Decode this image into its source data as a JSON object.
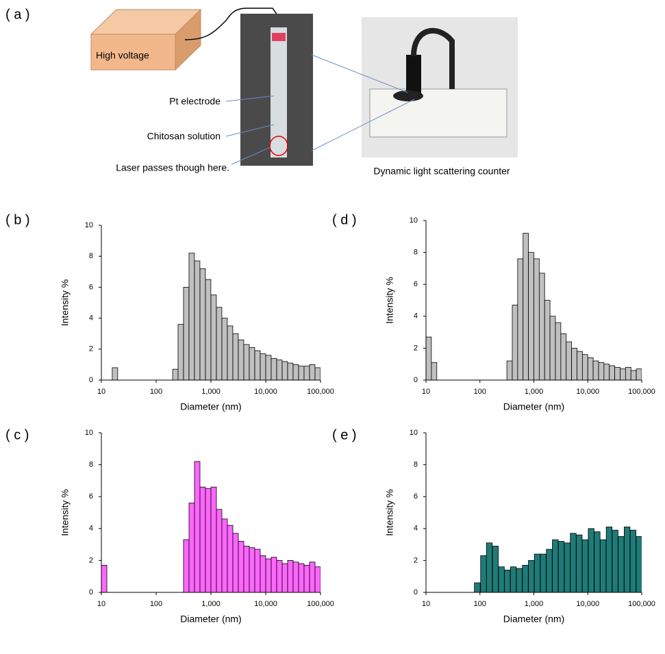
{
  "panel_a": {
    "label": "( a )",
    "power_supply": "High voltage",
    "annotations": [
      "Pt electrode",
      "Chitosan solution",
      "Laser passes though here."
    ],
    "instrument": "Dynamic light scattering counter"
  },
  "chart_data": [
    {
      "type": "bar",
      "label": "( b )",
      "x_label": "Diameter (nm)",
      "y_label": "Intensity %",
      "log_x": true,
      "color": "#c0c0c0",
      "x": [
        15.8,
        200,
        251,
        316,
        398,
        501,
        631,
        794,
        1000,
        1259,
        1585,
        1995,
        2512,
        3162,
        3981,
        5012,
        6310,
        7943,
        10000,
        12589,
        15849,
        19953,
        25119,
        31623,
        39811,
        50119,
        63096,
        79433
      ],
      "values": [
        0.8,
        0.7,
        3.6,
        6.0,
        8.2,
        7.7,
        7.2,
        6.5,
        5.5,
        4.7,
        4.0,
        3.5,
        3.0,
        2.6,
        2.3,
        2.1,
        1.9,
        1.7,
        1.6,
        1.4,
        1.3,
        1.2,
        1.1,
        1.0,
        0.9,
        0.9,
        1.0,
        0.8
      ],
      "xlim": [
        10,
        100000
      ],
      "xticks": [
        10,
        100,
        {
          "value": 1000,
          "label": "1,000"
        },
        {
          "value": 10000,
          "label": "10,000"
        },
        {
          "value": 100000,
          "label": "100,000"
        }
      ],
      "ylim": [
        0,
        10
      ],
      "yticks": [
        0,
        2,
        4,
        6,
        8,
        10
      ]
    },
    {
      "type": "bar",
      "label": "( d )",
      "x_label": "Diameter (nm)",
      "y_label": "Intensity %",
      "log_x": true,
      "color": "#c0c0c0",
      "x": [
        10,
        12.6,
        316,
        398,
        501,
        631,
        794,
        1000,
        1259,
        1585,
        1995,
        2512,
        3162,
        3981,
        5012,
        6310,
        7943,
        10000,
        12589,
        15849,
        19953,
        25119,
        31623,
        39811,
        50119,
        63096,
        79433
      ],
      "values": [
        2.7,
        1.1,
        1.2,
        4.7,
        7.6,
        9.2,
        8.0,
        7.6,
        6.7,
        5.0,
        4.0,
        3.6,
        2.9,
        2.4,
        2.0,
        1.8,
        1.6,
        1.4,
        1.2,
        1.1,
        1.0,
        0.9,
        0.8,
        0.7,
        0.8,
        0.6,
        0.7
      ],
      "xlim": [
        10,
        100000
      ],
      "xticks": [
        10,
        100,
        {
          "value": 1000,
          "label": "1,000"
        },
        {
          "value": 10000,
          "label": "10,000"
        },
        {
          "value": 100000,
          "label": "100,000"
        }
      ],
      "ylim": [
        0,
        10
      ],
      "yticks": [
        0,
        2,
        4,
        6,
        8,
        10
      ]
    },
    {
      "type": "bar",
      "label": "( c )",
      "x_label": "Diameter (nm)",
      "y_label": "Intensity %",
      "log_x": true,
      "color": "#ff66ff",
      "x": [
        10,
        316,
        398,
        501,
        631,
        794,
        1000,
        1259,
        1585,
        1995,
        2512,
        3162,
        3981,
        5012,
        6310,
        7943,
        10000,
        12589,
        15849,
        19953,
        25119,
        31623,
        39811,
        50119,
        63096,
        79433
      ],
      "values": [
        1.7,
        3.3,
        5.6,
        8.2,
        6.6,
        6.5,
        6.6,
        5.2,
        4.6,
        4.2,
        3.7,
        3.2,
        2.9,
        2.8,
        2.7,
        2.3,
        2.1,
        2.2,
        2.0,
        1.8,
        2.0,
        1.9,
        1.8,
        1.7,
        1.9,
        1.6
      ],
      "xlim": [
        10,
        100000
      ],
      "xticks": [
        10,
        100,
        {
          "value": 1000,
          "label": "1,000"
        },
        {
          "value": 10000,
          "label": "10,000"
        },
        {
          "value": 100000,
          "label": "100,000"
        }
      ],
      "ylim": [
        0,
        10
      ],
      "yticks": [
        0,
        2,
        4,
        6,
        8,
        10
      ]
    },
    {
      "type": "bar",
      "label": "( e )",
      "x_label": "Diameter (nm)",
      "y_label": "Intensity %",
      "log_x": true,
      "color": "#1f7b78",
      "x": [
        79,
        103,
        132,
        171,
        221,
        285,
        368,
        475,
        614,
        793,
        1023,
        1321,
        1706,
        2203,
        2844,
        3673,
        4742,
        6124,
        7907,
        10209,
        13183,
        17022,
        21979,
        28379,
        36644,
        47315,
        61094,
        78886
      ],
      "values": [
        0.6,
        2.3,
        3.1,
        2.9,
        1.6,
        1.4,
        1.6,
        1.5,
        1.7,
        2.0,
        2.4,
        2.4,
        2.7,
        3.3,
        3.2,
        3.1,
        3.7,
        3.6,
        3.3,
        4.0,
        3.8,
        3.3,
        4.1,
        3.9,
        3.5,
        4.1,
        3.9,
        3.5
      ],
      "xlim": [
        10,
        100000
      ],
      "xticks": [
        10,
        100,
        {
          "value": 1000,
          "label": "1,000"
        },
        {
          "value": 10000,
          "label": "10,000"
        },
        {
          "value": 100000,
          "label": "100,000"
        }
      ],
      "ylim": [
        0,
        10
      ],
      "yticks": [
        0,
        2,
        4,
        6,
        8,
        10
      ]
    }
  ]
}
